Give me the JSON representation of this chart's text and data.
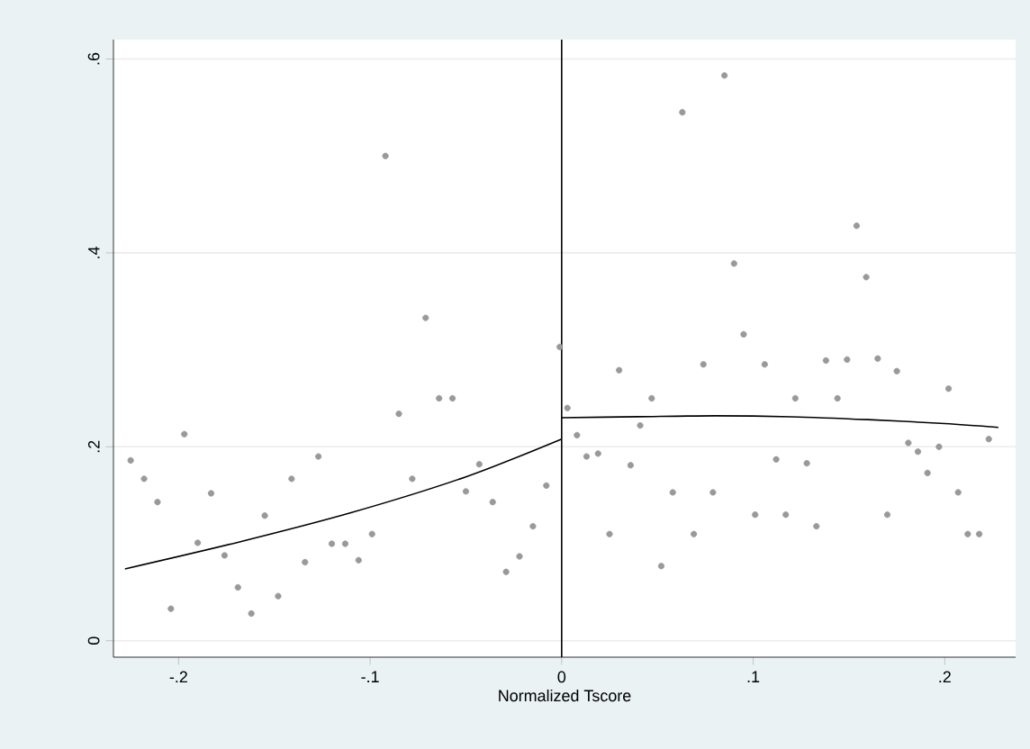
{
  "chart_data": {
    "type": "scatter",
    "xlabel": "Normalized Tscore",
    "xlim": [
      -0.234,
      0.237
    ],
    "ylim": [
      -0.017,
      0.62
    ],
    "xticks": [
      {
        "value": -0.2,
        "label": "-.2"
      },
      {
        "value": -0.1,
        "label": "-.1"
      },
      0,
      {
        "value": 0.1,
        "label": ".1"
      },
      {
        "value": 0.2,
        "label": ".2"
      }
    ],
    "yticks": [
      0,
      {
        "value": 0.2,
        "label": ".2"
      },
      {
        "value": 0.4,
        "label": ".4"
      },
      {
        "value": 0.6,
        "label": ".6"
      }
    ],
    "grid": "y",
    "ref_lines": [
      {
        "axis": "x",
        "value": 0,
        "color": "#000000"
      }
    ],
    "series": [
      {
        "color": "#999999",
        "marker": "circle",
        "x": [
          -0.225,
          -0.218,
          -0.211,
          -0.204,
          -0.197,
          -0.19,
          -0.183,
          -0.176,
          -0.169,
          -0.162,
          -0.155,
          -0.148,
          -0.141,
          -0.134,
          -0.127,
          -0.12,
          -0.113,
          -0.106,
          -0.099,
          -0.092,
          -0.085,
          -0.078,
          -0.071,
          -0.064,
          -0.057,
          -0.05,
          -0.043,
          -0.036,
          -0.029,
          -0.022,
          -0.015,
          -0.008,
          -0.001,
          0.003,
          0.008,
          0.013,
          0.019,
          0.025,
          0.03,
          0.036,
          0.041,
          0.047,
          0.052,
          0.058,
          0.063,
          0.069,
          0.074,
          0.079,
          0.085,
          0.09,
          0.095,
          0.101,
          0.106,
          0.112,
          0.117,
          0.122,
          0.128,
          0.133,
          0.138,
          0.144,
          0.149,
          0.154,
          0.159,
          0.165,
          0.17,
          0.175,
          0.181,
          0.186,
          0.191,
          0.197,
          0.202,
          0.207,
          0.212,
          0.218,
          0.223
        ],
        "values": [
          0.186,
          0.167,
          0.143,
          0.033,
          0.213,
          0.101,
          0.152,
          0.088,
          0.055,
          0.028,
          0.129,
          0.046,
          0.167,
          0.081,
          0.19,
          0.1,
          0.1,
          0.083,
          0.11,
          0.5,
          0.234,
          0.167,
          0.333,
          0.25,
          0.25,
          0.154,
          0.182,
          0.143,
          0.071,
          0.087,
          0.118,
          0.16,
          0.303,
          0.24,
          0.212,
          0.19,
          0.193,
          0.11,
          0.279,
          0.181,
          0.222,
          0.25,
          0.077,
          0.153,
          0.545,
          0.11,
          0.285,
          0.153,
          0.583,
          0.389,
          0.316,
          0.13,
          0.285,
          0.187,
          0.13,
          0.25,
          0.183,
          0.118,
          0.289,
          0.25,
          0.29,
          0.428,
          0.375,
          0.291,
          0.13,
          0.278,
          0.204,
          0.195,
          0.173,
          0.2,
          0.26,
          0.153,
          0.11,
          0.11,
          0.208
        ]
      },
      {
        "type": "line",
        "color": "#000000",
        "marker": "none",
        "x": [
          -0.228,
          -0.17,
          -0.11,
          -0.05,
          0
        ],
        "values": [
          0.074,
          0.101,
          0.132,
          0.169,
          0.208
        ]
      },
      {
        "type": "line",
        "color": "#000000",
        "marker": "none",
        "x": [
          0,
          0.04,
          0.08,
          0.12,
          0.16,
          0.2,
          0.228
        ],
        "values": [
          0.23,
          0.231,
          0.232,
          0.231,
          0.228,
          0.224,
          0.22
        ]
      }
    ]
  }
}
